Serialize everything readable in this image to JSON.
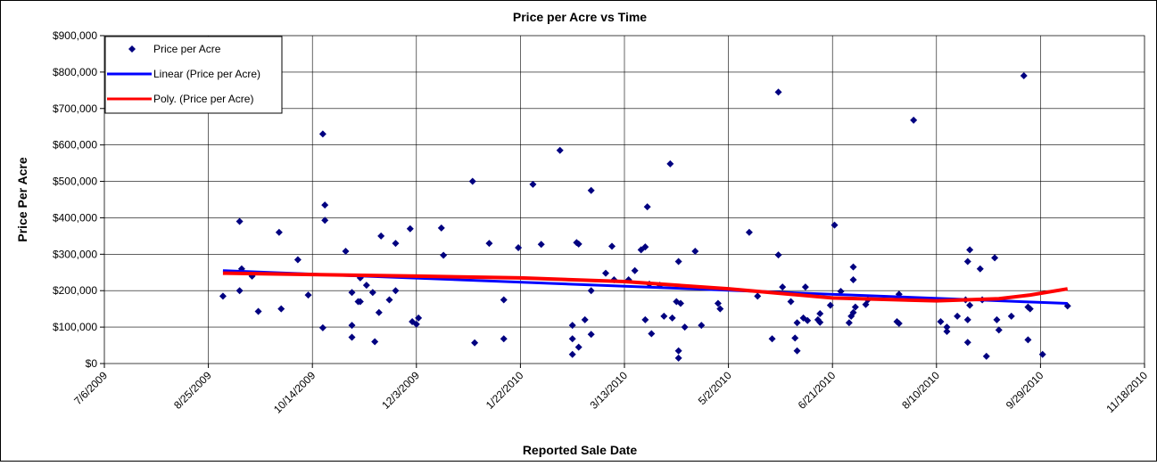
{
  "chart_data": {
    "type": "scatter",
    "title": "Price per Acre vs Time",
    "x_label": "Reported Sale Date",
    "y_label": "Price Per Acre",
    "legend": "upper left",
    "grid": true,
    "xlim": [
      40000,
      40500
    ],
    "xticks": [
      {
        "value": 40000,
        "label": "7/6/2009"
      },
      {
        "value": 40050,
        "label": "8/25/2009"
      },
      {
        "value": 40100,
        "label": "10/14/2009"
      },
      {
        "value": 40150,
        "label": "12/3/2009"
      },
      {
        "value": 40200,
        "label": "1/22/2010"
      },
      {
        "value": 40250,
        "label": "3/13/2010"
      },
      {
        "value": 40300,
        "label": "5/2/2010"
      },
      {
        "value": 40350,
        "label": "6/21/2010"
      },
      {
        "value": 40400,
        "label": "8/10/2010"
      },
      {
        "value": 40450,
        "label": "9/29/2010"
      },
      {
        "value": 40500,
        "label": "11/18/2010"
      }
    ],
    "ylim": [
      0,
      900000
    ],
    "yticks": [
      {
        "value": 0,
        "label": "$0"
      },
      {
        "value": 100000,
        "label": "$100,000"
      },
      {
        "value": 200000,
        "label": "$200,000"
      },
      {
        "value": 300000,
        "label": "$300,000"
      },
      {
        "value": 400000,
        "label": "$400,000"
      },
      {
        "value": 500000,
        "label": "$500,000"
      },
      {
        "value": 600000,
        "label": "$600,000"
      },
      {
        "value": 700000,
        "label": "$700,000"
      },
      {
        "value": 800000,
        "label": "$800,000"
      },
      {
        "value": 900000,
        "label": "$900,000"
      }
    ],
    "series": [
      {
        "name": "Price per Acre",
        "color": "#000080",
        "x": [
          40057,
          40065,
          40065,
          40066,
          40071,
          40074,
          40084,
          40085,
          40093,
          40098,
          40105,
          40105,
          40106,
          40106,
          40116,
          40119,
          40119,
          40119,
          40122,
          40123,
          40123,
          40126,
          40129,
          40130,
          40133,
          40132,
          40137,
          40140,
          40140,
          40147,
          40148,
          40151,
          40150,
          40162,
          40163,
          40177,
          40178,
          40185,
          40192,
          40192,
          40199,
          40206,
          40210,
          40219,
          40225,
          40225,
          40225,
          40227,
          40228,
          40228,
          40231,
          40234,
          40234,
          40234,
          40241,
          40244,
          40245,
          40252,
          40255,
          40258,
          40260,
          40260,
          40261,
          40262,
          40263,
          40267,
          40269,
          40272,
          40273,
          40275,
          40276,
          40277,
          40276,
          40276,
          40279,
          40284,
          40287,
          40295,
          40296,
          40310,
          40314,
          40321,
          40324,
          40324,
          40326,
          40330,
          40332,
          40333,
          40333,
          40336,
          40337,
          40338,
          40343,
          40344,
          40344,
          40349,
          40351,
          40354,
          40358,
          40359,
          40360,
          40360,
          40360,
          40361,
          40366,
          40367,
          40381,
          40382,
          40382,
          40389,
          40402,
          40405,
          40405,
          40410,
          40414,
          40415,
          40415,
          40416,
          40415,
          40416,
          40421,
          40422,
          40424,
          40428,
          40429,
          40430,
          40436,
          40442,
          40444,
          40444,
          40445,
          40451,
          40463
        ],
        "values": [
          185000,
          390000,
          200000,
          260000,
          240000,
          143000,
          360000,
          150000,
          285000,
          188000,
          98000,
          630000,
          435000,
          393000,
          308000,
          195000,
          105000,
          72000,
          170000,
          235000,
          170000,
          215000,
          195000,
          60000,
          350000,
          140000,
          175000,
          330000,
          200000,
          370000,
          115000,
          125000,
          108000,
          372000,
          297000,
          500000,
          57000,
          330000,
          175000,
          68000,
          318000,
          492000,
          327000,
          585000,
          105000,
          68000,
          25000,
          332000,
          328000,
          45000,
          120000,
          475000,
          200000,
          80000,
          248000,
          322000,
          230000,
          230000,
          255000,
          312000,
          320000,
          120000,
          430000,
          218000,
          82000,
          215000,
          130000,
          548000,
          125000,
          170000,
          280000,
          165000,
          35000,
          15000,
          100000,
          308000,
          105000,
          165000,
          150000,
          360000,
          185000,
          68000,
          745000,
          298000,
          210000,
          170000,
          70000,
          35000,
          112000,
          125000,
          210000,
          118000,
          120000,
          137000,
          113000,
          160000,
          380000,
          198000,
          112000,
          130000,
          265000,
          230000,
          140000,
          155000,
          162000,
          175000,
          115000,
          190000,
          110000,
          668000,
          115000,
          100000,
          88000,
          130000,
          175000,
          280000,
          58000,
          312000,
          120000,
          160000,
          260000,
          175000,
          20000,
          290000,
          120000,
          92000,
          130000,
          790000,
          155000,
          65000,
          150000,
          25000,
          158000
        ]
      },
      {
        "name": "Linear (Price per Acre)",
        "color": "#0000ff",
        "type": "line",
        "x": [
          40057,
          40463
        ],
        "values": [
          255000,
          165000
        ]
      },
      {
        "name": "Poly. (Price per Acre)",
        "color": "#ff0000",
        "type": "line",
        "x": [
          40057,
          40150,
          40200,
          40250,
          40300,
          40350,
          40400,
          40430,
          40445,
          40463
        ],
        "values": [
          248000,
          240000,
          235000,
          225000,
          205000,
          180000,
          172000,
          178000,
          188000,
          205000
        ]
      }
    ]
  }
}
